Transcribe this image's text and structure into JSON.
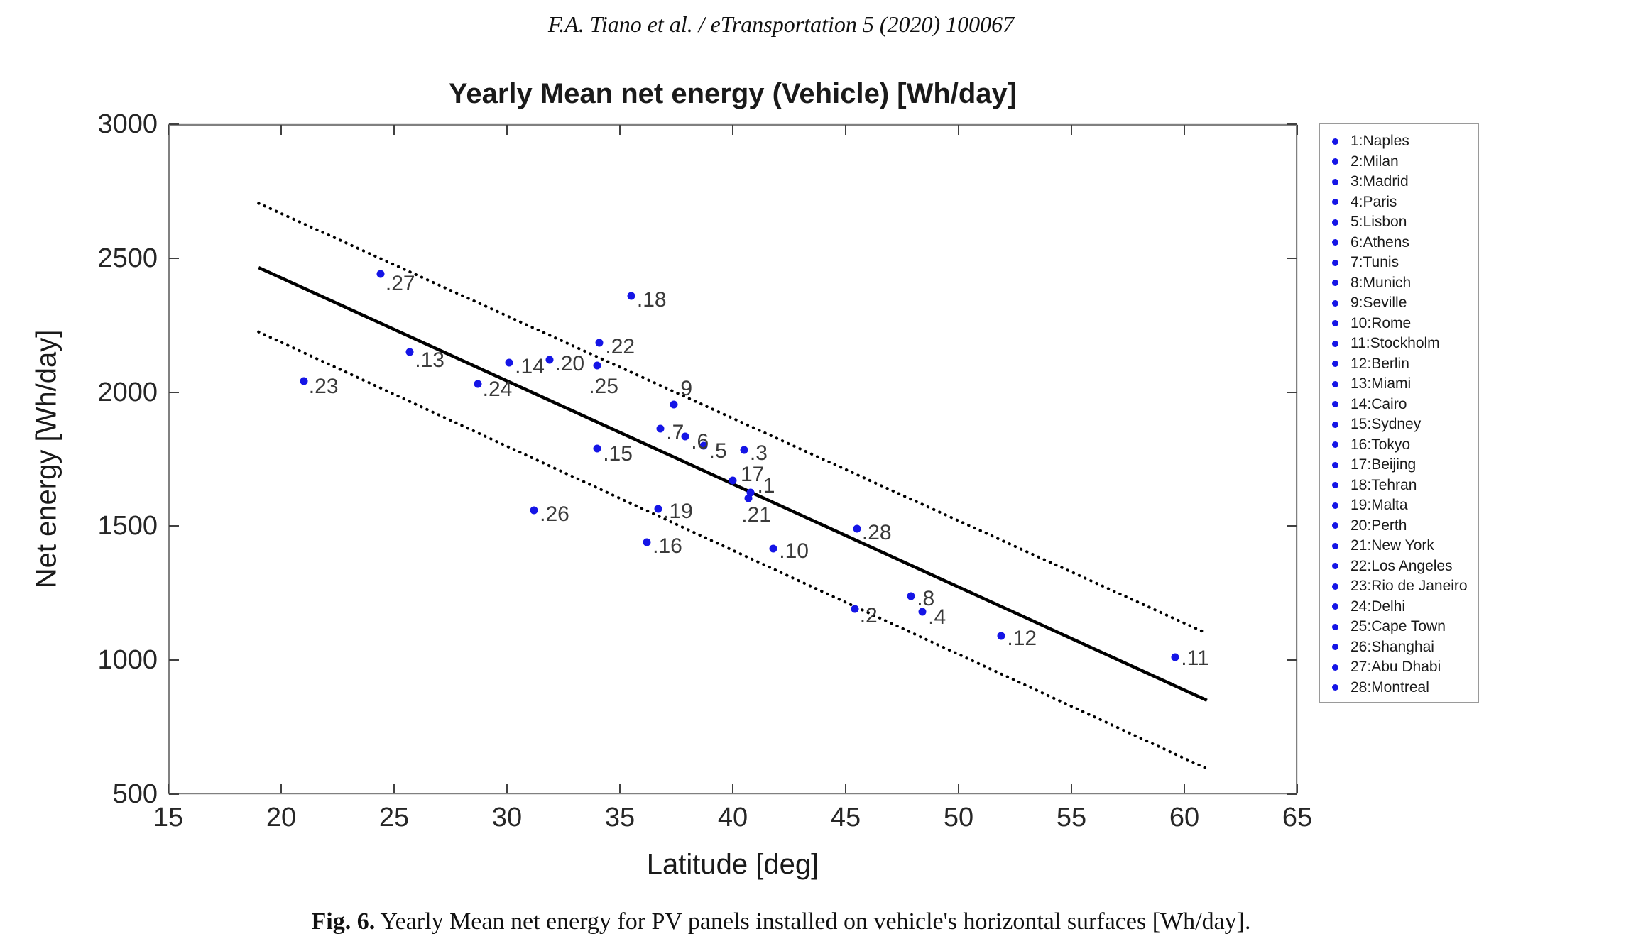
{
  "header": {
    "text": "F.A. Tiano et al. / eTransportation 5 (2020) 100067"
  },
  "caption": {
    "label": "Fig. 6.",
    "text": "Yearly Mean net energy for PV panels installed on vehicle's horizontal surfaces [Wh/day]."
  },
  "chart_data": {
    "type": "scatter",
    "title": "Yearly Mean net energy (Vehicle) [Wh/day]",
    "xlabel": "Latitude [deg]",
    "ylabel": "Net energy [Wh/day]",
    "xlim": [
      15,
      65
    ],
    "ylim": [
      500,
      3000
    ],
    "xticks": [
      15,
      20,
      25,
      30,
      35,
      40,
      45,
      50,
      55,
      60,
      65
    ],
    "yticks": [
      500,
      1000,
      1500,
      2000,
      2500,
      3000
    ],
    "grid": true,
    "colors": {
      "marker": "#1515e6",
      "fit_line": "#000000",
      "grid": "#e3e3e3",
      "axis": "#808080",
      "point_label": "#3a3a3a"
    },
    "points": [
      {
        "n": 1,
        "city": "Naples",
        "lat": 40.8,
        "value": 1625,
        "label": ".1",
        "offset": [
          9,
          -9
        ]
      },
      {
        "n": 2,
        "city": "Milan",
        "lat": 45.4,
        "value": 1190,
        "label": ".2",
        "offset": [
          7,
          10
        ]
      },
      {
        "n": 3,
        "city": "Madrid",
        "lat": 40.5,
        "value": 1785,
        "label": ".3",
        "offset": [
          8,
          5
        ]
      },
      {
        "n": 4,
        "city": "Paris",
        "lat": 48.4,
        "value": 1180,
        "label": ".4",
        "offset": [
          8,
          8
        ]
      },
      {
        "n": 5,
        "city": "Lisbon",
        "lat": 38.7,
        "value": 1800,
        "label": ".5",
        "offset": [
          8,
          8
        ]
      },
      {
        "n": 6,
        "city": "Athens",
        "lat": 37.9,
        "value": 1835,
        "label": ".6",
        "offset": [
          8,
          8
        ]
      },
      {
        "n": 7,
        "city": "Tunis",
        "lat": 36.8,
        "value": 1865,
        "label": ".7",
        "offset": [
          8,
          6
        ]
      },
      {
        "n": 8,
        "city": "Munich",
        "lat": 47.9,
        "value": 1240,
        "label": ".8",
        "offset": [
          8,
          4
        ]
      },
      {
        "n": 9,
        "city": "Seville",
        "lat": 37.4,
        "value": 1955,
        "label": "9",
        "offset": [
          9,
          -22
        ]
      },
      {
        "n": 10,
        "city": "Rome",
        "lat": 41.8,
        "value": 1415,
        "label": ".10",
        "offset": [
          8,
          4
        ]
      },
      {
        "n": 11,
        "city": "Stockholm",
        "lat": 59.6,
        "value": 1010,
        "label": ".11",
        "offset": [
          8,
          2
        ]
      },
      {
        "n": 12,
        "city": "Berlin",
        "lat": 51.9,
        "value": 1090,
        "label": ".12",
        "offset": [
          8,
          4
        ]
      },
      {
        "n": 13,
        "city": "Miami",
        "lat": 25.7,
        "value": 2150,
        "label": ".13",
        "offset": [
          7,
          12
        ]
      },
      {
        "n": 14,
        "city": "Cairo",
        "lat": 30.1,
        "value": 2110,
        "label": ".14",
        "offset": [
          8,
          6
        ]
      },
      {
        "n": 15,
        "city": "Sydney",
        "lat": 34.0,
        "value": 1790,
        "label": ".15",
        "offset": [
          8,
          8
        ]
      },
      {
        "n": 16,
        "city": "Tokyo",
        "lat": 36.2,
        "value": 1440,
        "label": ".16",
        "offset": [
          8,
          6
        ]
      },
      {
        "n": 17,
        "city": "Beijing",
        "lat": 40.0,
        "value": 1670,
        "label": "17",
        "offset": [
          11,
          -8
        ]
      },
      {
        "n": 18,
        "city": "Tehran",
        "lat": 35.5,
        "value": 2360,
        "label": ".18",
        "offset": [
          8,
          6
        ]
      },
      {
        "n": 19,
        "city": "Malta",
        "lat": 36.7,
        "value": 1565,
        "label": ".19",
        "offset": [
          7,
          4
        ]
      },
      {
        "n": 20,
        "city": "Perth",
        "lat": 31.9,
        "value": 2120,
        "label": ".20",
        "offset": [
          7,
          6
        ]
      },
      {
        "n": 21,
        "city": "New York",
        "lat": 40.7,
        "value": 1605,
        "label": ".21",
        "offset": [
          -10,
          24
        ]
      },
      {
        "n": 22,
        "city": "Los Angeles",
        "lat": 34.1,
        "value": 2185,
        "label": ".22",
        "offset": [
          8,
          6
        ]
      },
      {
        "n": 23,
        "city": "Rio de Janeiro",
        "lat": 21.0,
        "value": 2040,
        "label": ".23",
        "offset": [
          7,
          8
        ]
      },
      {
        "n": 24,
        "city": "Delhi",
        "lat": 28.7,
        "value": 2030,
        "label": ".24",
        "offset": [
          7,
          8
        ]
      },
      {
        "n": 25,
        "city": "Cape Town",
        "lat": 34.0,
        "value": 2100,
        "label": ".25",
        "offset": [
          -12,
          30
        ]
      },
      {
        "n": 26,
        "city": "Shanghai",
        "lat": 31.2,
        "value": 1560,
        "label": ".26",
        "offset": [
          8,
          6
        ]
      },
      {
        "n": 27,
        "city": "Abu Dhabi",
        "lat": 24.4,
        "value": 2440,
        "label": ".27",
        "offset": [
          7,
          14
        ]
      },
      {
        "n": 28,
        "city": "Montreal",
        "lat": 45.5,
        "value": 1490,
        "label": ".28",
        "offset": [
          7,
          6
        ]
      }
    ],
    "fit_line": {
      "style": "solid",
      "x": [
        19,
        61
      ],
      "y": [
        2465,
        850
      ]
    },
    "confidence_bounds": [
      {
        "style": "dotted",
        "x": [
          19,
          61
        ],
        "y": [
          2705,
          1100
        ]
      },
      {
        "style": "dotted",
        "x": [
          19,
          61
        ],
        "y": [
          2225,
          595
        ]
      }
    ],
    "legend": {
      "position": "right",
      "items": [
        "1:Naples",
        "2:Milan",
        "3:Madrid",
        "4:Paris",
        "5:Lisbon",
        "6:Athens",
        "7:Tunis",
        "8:Munich",
        "9:Seville",
        "10:Rome",
        "11:Stockholm",
        "12:Berlin",
        "13:Miami",
        "14:Cairo",
        "15:Sydney",
        "16:Tokyo",
        "17:Beijing",
        "18:Tehran",
        "19:Malta",
        "20:Perth",
        "21:New York",
        "22:Los Angeles",
        "23:Rio de Janeiro",
        "24:Delhi",
        "25:Cape Town",
        "26:Shanghai",
        "27:Abu Dhabi",
        "28:Montreal"
      ]
    }
  }
}
